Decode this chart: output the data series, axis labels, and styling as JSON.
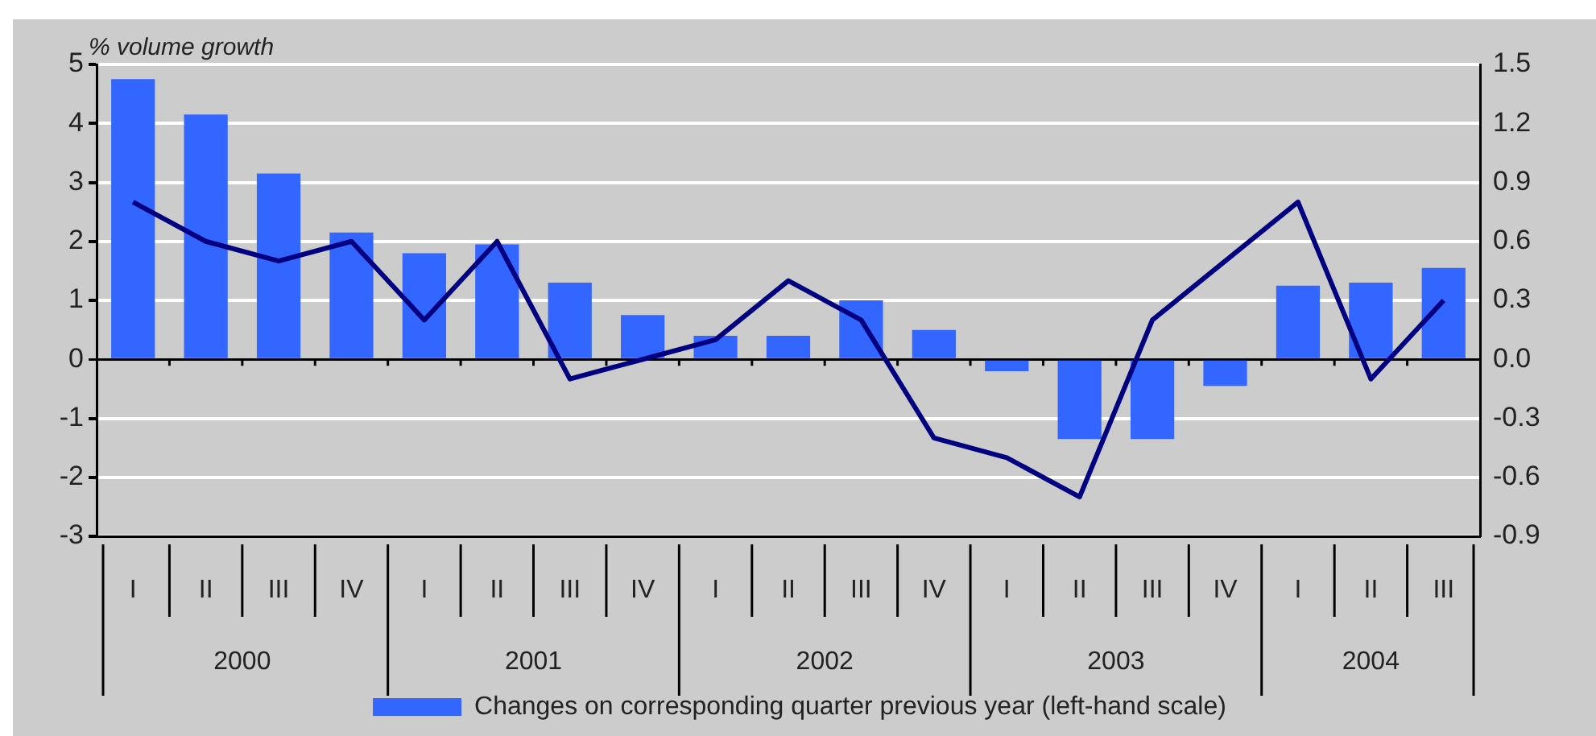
{
  "chart_data": {
    "type": "bar",
    "ylabel": "% volume growth",
    "categories": [
      "I",
      "II",
      "III",
      "IV",
      "I",
      "II",
      "III",
      "IV",
      "I",
      "II",
      "III",
      "IV",
      "I",
      "II",
      "III",
      "IV",
      "I",
      "II",
      "III"
    ],
    "annotations": [
      "2000",
      "2001",
      "2002",
      "2003",
      "2004"
    ],
    "series": [
      {
        "name": "Changes on corresponding quarter previous year (left-hand scale)",
        "color": "#3366ff",
        "values": [
          4.75,
          4.15,
          3.15,
          2.15,
          1.8,
          1.95,
          1.3,
          0.75,
          0.4,
          0.4,
          1.0,
          0.5,
          -0.2,
          -1.35,
          -1.35,
          -0.45,
          1.25,
          1.3,
          1.55
        ]
      },
      {
        "type": "line",
        "axis": "y2",
        "color": "#000080",
        "values": [
          0.8,
          0.6,
          0.5,
          0.6,
          0.2,
          0.6,
          -0.1,
          0.0,
          0.1,
          0.4,
          0.2,
          -0.4,
          -0.5,
          -0.7,
          0.2,
          0.5,
          0.8,
          -0.1,
          0.3
        ]
      }
    ],
    "ylim": [
      -3,
      5
    ],
    "yticks": [
      -3,
      -2,
      -1,
      0,
      1,
      2,
      3,
      4,
      5
    ],
    "y2lim": [
      -0.9,
      1.5
    ],
    "y2ticks": [
      {
        "value": -0.9,
        "label": "-0.9"
      },
      {
        "value": -0.6,
        "label": "-0.6"
      },
      {
        "value": -0.3,
        "label": "-0.3"
      },
      {
        "value": 0,
        "label": "0.0"
      },
      {
        "value": 0.3,
        "label": "0.3"
      },
      {
        "value": 0.6,
        "label": "0.6"
      },
      {
        "value": 0.9,
        "label": "0.9"
      },
      {
        "value": 1.2,
        "label": "1.2"
      },
      {
        "value": 1.5,
        "label": "1.5"
      }
    ],
    "grid": "y",
    "legend": "bottom",
    "marker": "none",
    "line_style": "solid"
  }
}
